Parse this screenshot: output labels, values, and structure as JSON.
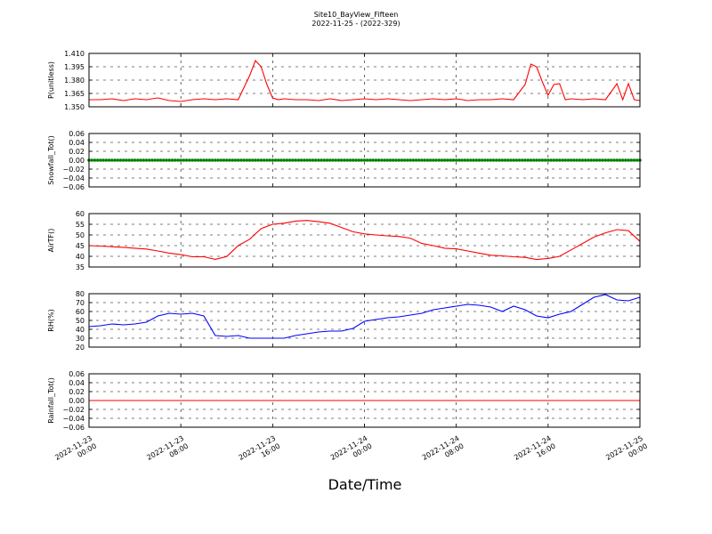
{
  "figure": {
    "title": "Site10_BayView_Fifteen",
    "subtitle": "2022-11-25 - (2022-329)",
    "xlabel": "Date/Time",
    "x_ticks": [
      {
        "l1": "2022-11-23",
        "l2": "00:00"
      },
      {
        "l1": "2022-11-23",
        "l2": "08:00"
      },
      {
        "l1": "2022-11-23",
        "l2": "16:00"
      },
      {
        "l1": "2022-11-24",
        "l2": "00:00"
      },
      {
        "l1": "2022-11-24",
        "l2": "08:00"
      },
      {
        "l1": "2022-11-24",
        "l2": "16:00"
      },
      {
        "l1": "2022-11-25",
        "l2": "00:00"
      }
    ]
  },
  "chart_data": [
    {
      "type": "line",
      "ylabel": "P(unitless)",
      "color": "#ff0000",
      "ylim": [
        1.35,
        1.41
      ],
      "yticks": [
        "1.350",
        "1.365",
        "1.380",
        "1.395",
        "1.410"
      ],
      "grid": true,
      "x_start": "2022-11-23 00:00",
      "x_end": "2022-11-25 00:00",
      "series": [
        {
          "x_hours": [
            0,
            1,
            2,
            3,
            4,
            5,
            6,
            7,
            8,
            9,
            10,
            11,
            12,
            13,
            14,
            14.5,
            15,
            15.5,
            16,
            16.5,
            17,
            18,
            19,
            20,
            21,
            22,
            23,
            24,
            25,
            26,
            27,
            28,
            29,
            30,
            31,
            32,
            33,
            34,
            35,
            36,
            37,
            38,
            38.5,
            39,
            39.5,
            40,
            40.5,
            41,
            41.5,
            42,
            43,
            44,
            45,
            46,
            46.5,
            47,
            47.5,
            48
          ],
          "y": [
            1.358,
            1.358,
            1.359,
            1.357,
            1.359,
            1.358,
            1.36,
            1.357,
            1.356,
            1.358,
            1.359,
            1.358,
            1.359,
            1.358,
            1.385,
            1.402,
            1.395,
            1.375,
            1.36,
            1.358,
            1.359,
            1.358,
            1.358,
            1.357,
            1.359,
            1.357,
            1.358,
            1.359,
            1.358,
            1.359,
            1.358,
            1.357,
            1.358,
            1.359,
            1.358,
            1.359,
            1.357,
            1.358,
            1.358,
            1.359,
            1.358,
            1.375,
            1.398,
            1.395,
            1.378,
            1.363,
            1.375,
            1.376,
            1.358,
            1.359,
            1.358,
            1.359,
            1.358,
            1.376,
            1.358,
            1.376,
            1.358,
            1.357
          ]
        }
      ]
    },
    {
      "type": "scatter",
      "ylabel": "Snowfall_Tot()",
      "color": "#008000",
      "ylim": [
        -0.06,
        0.06
      ],
      "yticks": [
        "0.06",
        "0.04",
        "0.02",
        "0.00",
        "−0.02",
        "−0.04",
        "−0.06"
      ],
      "grid": true,
      "x_start": "2022-11-23 00:00",
      "x_end": "2022-11-25 00:00",
      "series": [
        {
          "x_hours": [
            0,
            48
          ],
          "y": [
            0,
            0
          ],
          "note": "constant 0.00 every 15 min"
        }
      ]
    },
    {
      "type": "line",
      "ylabel": "AirTF()",
      "color": "#ff0000",
      "ylim": [
        35,
        60
      ],
      "yticks": [
        "60",
        "55",
        "50",
        "45",
        "40",
        "35"
      ],
      "grid": true,
      "x_start": "2022-11-23 00:00",
      "x_end": "2022-11-25 00:00",
      "series": [
        {
          "x_hours": [
            0,
            1,
            2,
            3,
            4,
            5,
            6,
            7,
            8,
            9,
            10,
            11,
            12,
            13,
            14,
            15,
            16,
            17,
            18,
            19,
            20,
            21,
            22,
            23,
            24,
            25,
            26,
            27,
            28,
            29,
            30,
            31,
            32,
            33,
            34,
            35,
            36,
            37,
            38,
            39,
            40,
            41,
            42,
            43,
            44,
            45,
            46,
            47,
            48
          ],
          "y": [
            45,
            44.8,
            44.5,
            44.2,
            43.8,
            43.4,
            42.5,
            41.5,
            40.8,
            39.8,
            39.8,
            38.6,
            39.9,
            45,
            48,
            53,
            55,
            55.5,
            56.5,
            56.8,
            56.2,
            55.5,
            53.5,
            51.5,
            50.5,
            50,
            49.6,
            49.3,
            48.5,
            46,
            45,
            43.8,
            43.5,
            42.5,
            41.5,
            40.5,
            40.2,
            39.8,
            39.5,
            38.5,
            39,
            40,
            43,
            46,
            49,
            51,
            52.5,
            52,
            47
          ]
        }
      ]
    },
    {
      "type": "line",
      "ylabel": "RH(%)",
      "color": "#0000ff",
      "ylim": [
        20,
        80
      ],
      "yticks": [
        "80",
        "70",
        "60",
        "50",
        "40",
        "30",
        "20"
      ],
      "grid": true,
      "x_start": "2022-11-23 00:00",
      "x_end": "2022-11-25 00:00",
      "series": [
        {
          "x_hours": [
            0,
            1,
            2,
            3,
            4,
            5,
            6,
            7,
            8,
            9,
            10,
            11,
            12,
            13,
            14,
            15,
            16,
            17,
            18,
            19,
            20,
            21,
            22,
            23,
            24,
            25,
            26,
            27,
            28,
            29,
            30,
            31,
            32,
            33,
            34,
            35,
            36,
            37,
            38,
            39,
            40,
            41,
            42,
            43,
            44,
            45,
            46,
            47,
            48
          ],
          "y": [
            43,
            44,
            46,
            45,
            46,
            48,
            55,
            58,
            57,
            58,
            55,
            33,
            32,
            33,
            30,
            30,
            30,
            30,
            33,
            35,
            37,
            38,
            38,
            41,
            49,
            51,
            53,
            54,
            56,
            58,
            62,
            64,
            66,
            68,
            67,
            65,
            60,
            66,
            62,
            55,
            53,
            57,
            60,
            68,
            76,
            79,
            73,
            72,
            76
          ]
        }
      ]
    },
    {
      "type": "line",
      "ylabel": "Rainfall_Tot()",
      "color": "#ff0000",
      "ylim": [
        -0.06,
        0.06
      ],
      "yticks": [
        "0.06",
        "0.04",
        "0.02",
        "0.00",
        "−0.02",
        "−0.04",
        "−0.06"
      ],
      "grid": true,
      "x_start": "2022-11-23 00:00",
      "x_end": "2022-11-25 00:00",
      "series": [
        {
          "x_hours": [
            0,
            48
          ],
          "y": [
            0,
            0
          ]
        }
      ]
    }
  ]
}
